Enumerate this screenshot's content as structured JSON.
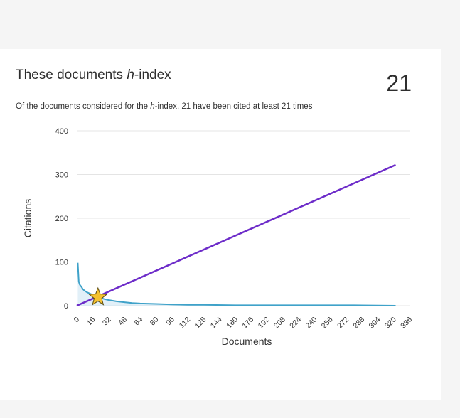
{
  "card": {
    "title_pre": "These documents ",
    "title_h": "h",
    "title_post": "-index",
    "h_index_value": "21",
    "subtitle_pre": "Of the documents considered for the ",
    "subtitle_h": "h",
    "subtitle_post": "-index, 21 have been cited at least 21 times"
  },
  "colors": {
    "page_bg": "#f5f5f5",
    "card_bg": "#ffffff",
    "citations_line": "#3fa2c9",
    "citations_fill": "#cfe6f3",
    "diagonal_line": "#6d2cc9",
    "star_fill": "#f5c230",
    "star_stroke": "#5a4a10",
    "grid": "#e4e4e4"
  },
  "chart_data": {
    "type": "line",
    "xlabel": "Documents",
    "ylabel": "Citations",
    "xlim": [
      0,
      336
    ],
    "ylim": [
      0,
      400
    ],
    "x_ticks": [
      0,
      16,
      32,
      48,
      64,
      80,
      96,
      112,
      128,
      144,
      160,
      176,
      192,
      208,
      224,
      240,
      256,
      272,
      288,
      304,
      320,
      336
    ],
    "y_ticks": [
      0,
      100,
      200,
      300,
      400
    ],
    "grid": "horizontal",
    "series": [
      {
        "role": "citations",
        "x": [
          1,
          2,
          3,
          4,
          5,
          6,
          8,
          10,
          12,
          14,
          16,
          18,
          20,
          21,
          24,
          28,
          32,
          40,
          48,
          56,
          64,
          80,
          96,
          112,
          128,
          160,
          200,
          240,
          280,
          322
        ],
        "y": [
          98,
          55,
          48,
          45,
          42,
          38,
          34,
          31,
          29,
          27,
          25,
          23,
          22,
          21,
          18,
          15,
          13,
          10,
          8,
          6,
          5,
          4,
          3,
          2,
          2,
          1,
          1,
          1,
          1,
          0
        ]
      },
      {
        "role": "x=y reference",
        "x": [
          0,
          322
        ],
        "y": [
          0,
          322
        ]
      }
    ],
    "h_index_point": {
      "x": 21,
      "y": 21
    }
  }
}
